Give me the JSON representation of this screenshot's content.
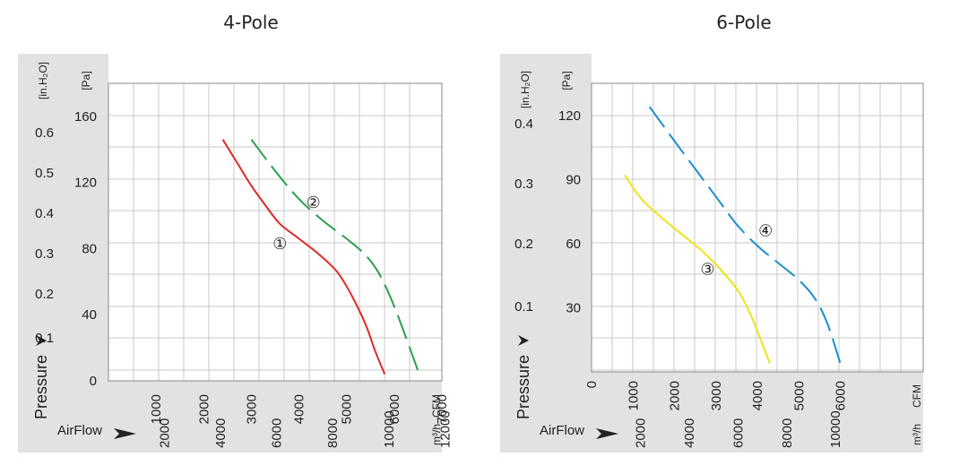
{
  "chart_data": [
    {
      "type": "line",
      "title": "4-Pole",
      "x_unit_primary": "CFM",
      "x_unit_secondary": "m³/h",
      "y_unit_primary": "[Pa]",
      "y_unit_secondary": "[in.H₂O]",
      "xlim": [
        0,
        7000
      ],
      "ylim": [
        0,
        180
      ],
      "x_ticks": [
        "1000",
        "2000",
        "3000",
        "4000",
        "5000",
        "6000",
        "7000"
      ],
      "x2_ticks": [
        "2000",
        "4000",
        "6000",
        "8000",
        "10000",
        "12000"
      ],
      "y_ticks": [
        "0",
        "40",
        "80",
        "120",
        "160"
      ],
      "y2_ticks": [
        "0.1",
        "0.2",
        "0.3",
        "0.4",
        "0.5",
        "0.6"
      ],
      "pressure_label": "Pressure",
      "airflow_label": "AirFlow",
      "grid": true,
      "series": [
        {
          "name": "①",
          "color": "#e02828",
          "dash": false,
          "x": [
            2400,
            2700,
            3000,
            3300,
            3600,
            4000,
            4400,
            4800,
            5100,
            5400,
            5600,
            5800
          ],
          "y": [
            146,
            132,
            118,
            106,
            95,
            86,
            77,
            66,
            52,
            34,
            18,
            4
          ]
        },
        {
          "name": "②",
          "color": "#2aa04a",
          "dash": true,
          "x": [
            3000,
            3500,
            4000,
            4500,
            5000,
            5400,
            5700,
            6000,
            6300,
            6500
          ],
          "y": [
            146,
            127,
            110,
            97,
            86,
            76,
            64,
            45,
            22,
            6
          ]
        }
      ]
    },
    {
      "type": "line",
      "title": "6-Pole",
      "x_unit_primary": "CFM",
      "x_unit_secondary": "m³/h",
      "y_unit_primary": "[Pa]",
      "y_unit_secondary": "[in.H₂O]",
      "xlim": [
        0,
        8000
      ],
      "ylim": [
        0,
        135
      ],
      "x_ticks": [
        "0",
        "1000",
        "2000",
        "3000",
        "4000",
        "5000",
        "6000"
      ],
      "x2_ticks": [
        "2000",
        "4000",
        "6000",
        "8000",
        "10000"
      ],
      "y_ticks": [
        "30",
        "60",
        "90",
        "120"
      ],
      "y2_ticks": [
        "0.1",
        "0.2",
        "0.3",
        "0.4"
      ],
      "pressure_label": "Pressure",
      "airflow_label": "AirFlow",
      "grid": true,
      "series": [
        {
          "name": "③",
          "color": "#f2e21a",
          "dash": false,
          "x": [
            800,
            1200,
            1700,
            2200,
            2700,
            3200,
            3600,
            3900,
            4100,
            4300
          ],
          "y": [
            92,
            81,
            72,
            64,
            56,
            46,
            36,
            24,
            14,
            4
          ]
        },
        {
          "name": "④",
          "color": "#1b8fce",
          "dash": true,
          "x": [
            1400,
            2000,
            2500,
            3000,
            3500,
            4000,
            4500,
            5000,
            5400,
            5700,
            6000
          ],
          "y": [
            124,
            108,
            95,
            82,
            69,
            59,
            51,
            43,
            34,
            22,
            4
          ]
        }
      ]
    }
  ]
}
